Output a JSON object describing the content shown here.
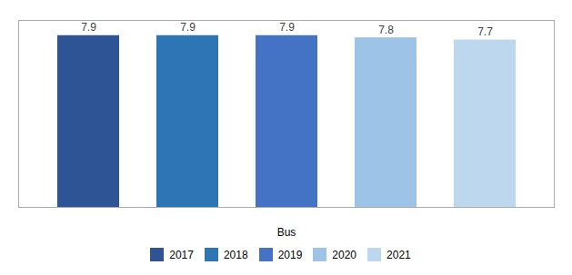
{
  "chart_data": {
    "type": "bar",
    "categories": [
      "2017",
      "2018",
      "2019",
      "2020",
      "2021"
    ],
    "values": [
      7.9,
      7.9,
      7.9,
      7.8,
      7.7
    ],
    "colors": [
      "#2E5496",
      "#2E75B6",
      "#4472C4",
      "#9DC3E6",
      "#BDD7EE"
    ],
    "xlabel": "Bus",
    "ylim": [
      0,
      8.6
    ],
    "data_labels": true,
    "tick_labels": false,
    "legend": "bottom",
    "grid": false
  }
}
